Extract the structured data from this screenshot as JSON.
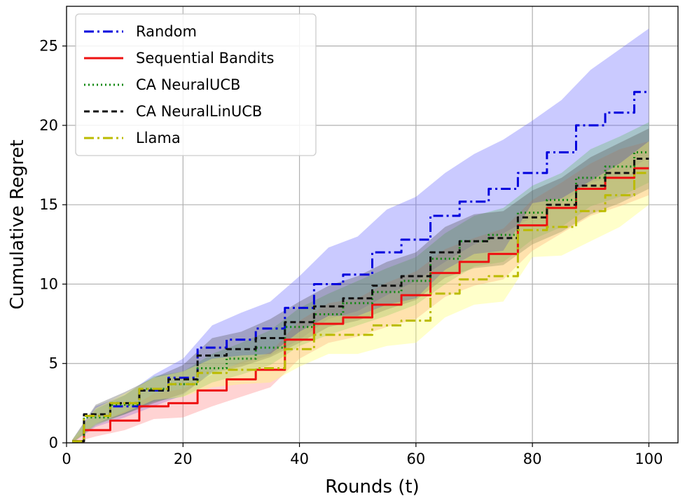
{
  "chart_data": {
    "type": "line",
    "xlabel": "Rounds (t)",
    "ylabel": "Cumulative Regret",
    "xlim": [
      0,
      105
    ],
    "ylim": [
      0,
      27.5
    ],
    "xticks": [
      0,
      20,
      40,
      60,
      80,
      100
    ],
    "yticks": [
      0,
      5,
      10,
      15,
      20,
      25
    ],
    "grid": true,
    "legend_position": "top-left",
    "x": [
      1,
      5,
      10,
      15,
      20,
      25,
      30,
      35,
      40,
      45,
      50,
      55,
      60,
      65,
      70,
      75,
      80,
      85,
      90,
      95,
      100
    ],
    "series": [
      {
        "name": "Random",
        "color": "#0000dd",
        "dash": "14,5,3,5",
        "values": [
          0.1,
          1.7,
          2.3,
          3.3,
          4.1,
          6.0,
          6.5,
          7.2,
          8.5,
          10.0,
          10.6,
          12.0,
          12.8,
          14.3,
          15.2,
          16.0,
          17.0,
          18.3,
          20.0,
          20.8,
          22.1
        ],
        "lower": [
          0.0,
          1.0,
          1.6,
          2.3,
          3.0,
          4.5,
          5.0,
          5.5,
          6.5,
          7.8,
          8.3,
          9.3,
          10.2,
          11.4,
          12.5,
          13.2,
          14.2,
          15.1,
          16.4,
          16.8,
          18.0
        ],
        "upper": [
          0.2,
          2.3,
          3.0,
          4.3,
          5.3,
          7.4,
          8.2,
          8.9,
          10.5,
          12.3,
          13.0,
          14.7,
          15.5,
          17.0,
          18.2,
          19.1,
          20.3,
          21.6,
          23.5,
          24.8,
          26.1
        ],
        "band_color": "#6666ff"
      },
      {
        "name": "Sequential Bandits",
        "color": "#ee1111",
        "dash": "",
        "values": [
          0.1,
          0.8,
          1.4,
          2.3,
          2.5,
          3.3,
          4.0,
          4.6,
          6.5,
          7.5,
          7.9,
          8.7,
          9.3,
          10.7,
          11.4,
          11.9,
          13.7,
          14.8,
          16.0,
          16.7,
          17.3
        ],
        "lower": [
          0.0,
          0.4,
          0.8,
          1.5,
          1.6,
          2.3,
          2.9,
          3.5,
          5.3,
          6.3,
          6.7,
          7.3,
          7.8,
          9.2,
          9.9,
          10.3,
          12.1,
          13.2,
          14.3,
          14.9,
          15.6
        ],
        "upper": [
          0.2,
          1.2,
          2.0,
          3.1,
          3.4,
          4.3,
          5.1,
          5.7,
          7.7,
          8.8,
          9.1,
          10.1,
          10.8,
          12.2,
          12.9,
          13.5,
          15.3,
          16.4,
          17.6,
          18.5,
          19.0
        ],
        "band_color": "#ff8080"
      },
      {
        "name": "CA NeuralUCB",
        "color": "#118811",
        "dash": "2,4",
        "values": [
          0.1,
          1.6,
          2.4,
          3.4,
          3.7,
          4.7,
          5.3,
          6.0,
          7.3,
          8.1,
          8.8,
          9.5,
          10.2,
          11.6,
          12.7,
          13.1,
          14.5,
          15.3,
          16.7,
          17.4,
          18.3
        ],
        "lower": [
          0.0,
          1.1,
          1.8,
          2.6,
          2.9,
          3.8,
          4.3,
          4.9,
          6.1,
          6.8,
          7.4,
          8.0,
          8.7,
          10.0,
          11.1,
          11.4,
          12.8,
          13.6,
          14.9,
          15.5,
          16.4
        ],
        "upper": [
          0.2,
          2.1,
          3.0,
          4.2,
          4.5,
          5.6,
          6.3,
          7.1,
          8.5,
          9.4,
          10.2,
          11.0,
          11.7,
          13.2,
          14.3,
          14.8,
          16.2,
          17.0,
          18.5,
          19.3,
          20.2
        ],
        "band_color": "#66bb66"
      },
      {
        "name": "CA NeuralLinUCB",
        "color": "#111111",
        "dash": "8,5",
        "values": [
          0.1,
          1.8,
          2.5,
          3.3,
          4.0,
          5.5,
          5.9,
          6.6,
          7.6,
          8.6,
          9.1,
          9.9,
          10.5,
          12.0,
          12.7,
          12.9,
          14.2,
          15.0,
          16.2,
          17.0,
          17.9
        ],
        "lower": [
          0.0,
          1.2,
          1.8,
          2.5,
          3.1,
          4.4,
          4.8,
          5.4,
          6.3,
          7.3,
          7.7,
          8.4,
          9.0,
          10.4,
          11.0,
          11.2,
          12.5,
          13.3,
          14.4,
          15.1,
          16.0
        ],
        "upper": [
          0.2,
          2.4,
          3.2,
          4.1,
          4.9,
          6.6,
          7.0,
          7.8,
          8.9,
          9.9,
          10.5,
          11.4,
          12.0,
          13.6,
          14.4,
          14.6,
          15.9,
          16.7,
          18.0,
          18.9,
          19.8
        ],
        "band_color": "#555555"
      },
      {
        "name": "Llama",
        "color": "#bbbb00",
        "dash": "14,5,3,5",
        "values": [
          0.1,
          1.7,
          2.5,
          3.4,
          3.7,
          4.4,
          4.6,
          4.7,
          5.9,
          6.8,
          6.8,
          7.4,
          7.7,
          9.4,
          10.3,
          10.5,
          13.4,
          13.6,
          14.6,
          15.6,
          17.0
        ],
        "lower": [
          0.0,
          1.2,
          1.9,
          2.7,
          2.9,
          3.5,
          3.7,
          3.8,
          4.8,
          5.6,
          5.6,
          6.1,
          6.3,
          7.9,
          8.7,
          8.9,
          11.7,
          11.8,
          12.7,
          13.6,
          15.0
        ],
        "upper": [
          0.2,
          2.2,
          3.1,
          4.1,
          4.5,
          5.3,
          5.5,
          5.6,
          7.0,
          8.0,
          8.0,
          8.7,
          9.1,
          10.9,
          11.9,
          12.1,
          15.1,
          15.4,
          16.5,
          17.6,
          19.0
        ],
        "band_color": "#ffff66"
      }
    ]
  }
}
